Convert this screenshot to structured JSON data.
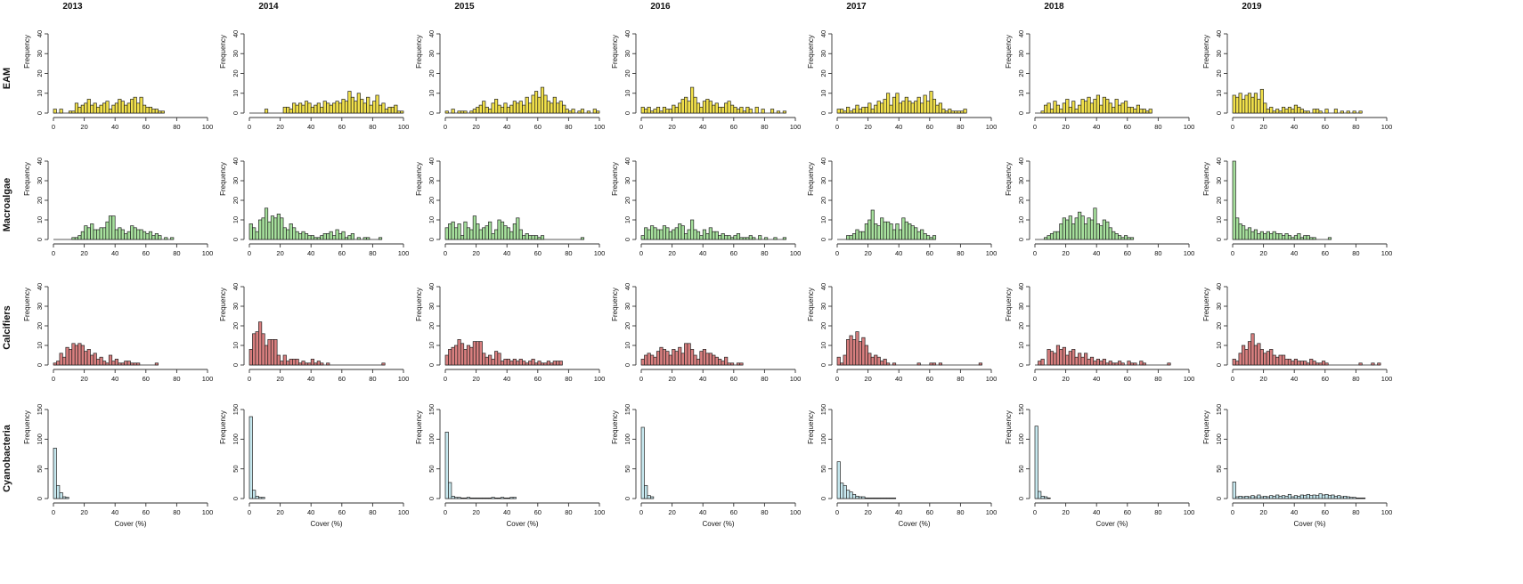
{
  "chart_data": {
    "type": "histogram-grid",
    "years": [
      "2013",
      "2014",
      "2015",
      "2016",
      "2017",
      "2018",
      "2019"
    ],
    "x_label": "Cover (%)",
    "y_label": "Frequency",
    "xlim": [
      0,
      100
    ],
    "x_ticks": [
      0,
      20,
      40,
      60,
      80,
      100
    ],
    "bin_width": 2,
    "rows": [
      {
        "name": "EAM",
        "color": "#f2e14a",
        "ylim": [
          0,
          40
        ],
        "y_ticks": [
          0,
          10,
          20,
          30,
          40
        ],
        "panels": [
          [
            2,
            0,
            2,
            0,
            0,
            1,
            1,
            5,
            3,
            4,
            5,
            7,
            4,
            5,
            3,
            4,
            5,
            6,
            2,
            4,
            5,
            7,
            6,
            4,
            5,
            7,
            8,
            5,
            8,
            4,
            3,
            3,
            2,
            2,
            1,
            1,
            0,
            0
          ],
          [
            0,
            0,
            0,
            0,
            0,
            2,
            0,
            0,
            0,
            0,
            0,
            3,
            3,
            2,
            5,
            4,
            5,
            4,
            6,
            5,
            3,
            4,
            5,
            3,
            6,
            5,
            4,
            5,
            6,
            5,
            7,
            6,
            11,
            8,
            6,
            10,
            7,
            5,
            8,
            4,
            6,
            9,
            4,
            5,
            2,
            3,
            3,
            4,
            1,
            1
          ],
          [
            1,
            0,
            2,
            0,
            1,
            1,
            1,
            0,
            1,
            2,
            3,
            4,
            6,
            3,
            2,
            5,
            7,
            4,
            3,
            5,
            3,
            4,
            6,
            5,
            6,
            4,
            8,
            5,
            9,
            11,
            8,
            13,
            9,
            6,
            5,
            8,
            5,
            6,
            4,
            2,
            1,
            2,
            0,
            1,
            2,
            0,
            1,
            0,
            2,
            1
          ],
          [
            3,
            2,
            3,
            1,
            2,
            3,
            1,
            3,
            2,
            2,
            4,
            3,
            5,
            7,
            8,
            6,
            13,
            8,
            5,
            3,
            6,
            7,
            6,
            4,
            5,
            3,
            3,
            5,
            6,
            4,
            3,
            2,
            3,
            1,
            3,
            2,
            0,
            3,
            0,
            2,
            0,
            0,
            2,
            0,
            1,
            0,
            1
          ],
          [
            2,
            2,
            1,
            3,
            1,
            2,
            4,
            2,
            3,
            3,
            5,
            2,
            4,
            6,
            5,
            7,
            10,
            4,
            8,
            10,
            5,
            6,
            8,
            6,
            5,
            6,
            8,
            5,
            9,
            6,
            11,
            7,
            4,
            5,
            2,
            1,
            2,
            1,
            1,
            1,
            1,
            2
          ],
          [
            0,
            0,
            1,
            4,
            5,
            2,
            6,
            4,
            2,
            5,
            7,
            3,
            6,
            2,
            4,
            7,
            6,
            8,
            5,
            7,
            9,
            4,
            8,
            7,
            5,
            3,
            7,
            4,
            5,
            6,
            3,
            3,
            2,
            4,
            2,
            2,
            1,
            2
          ],
          [
            9,
            8,
            10,
            7,
            9,
            10,
            8,
            10,
            7,
            12,
            5,
            2,
            3,
            1,
            2,
            1,
            3,
            2,
            3,
            2,
            4,
            3,
            2,
            1,
            1,
            0,
            2,
            2,
            1,
            0,
            2,
            0,
            0,
            2,
            0,
            1,
            0,
            1,
            0,
            1,
            0,
            1
          ]
        ]
      },
      {
        "name": "Macroalgae",
        "color": "#a6e09c",
        "ylim": [
          0,
          40
        ],
        "y_ticks": [
          0,
          10,
          20,
          30,
          40
        ],
        "panels": [
          [
            0,
            0,
            0,
            0,
            0,
            0,
            1,
            1,
            2,
            4,
            7,
            6,
            8,
            5,
            5,
            6,
            6,
            9,
            12,
            12,
            5,
            6,
            5,
            3,
            4,
            7,
            6,
            5,
            5,
            4,
            3,
            4,
            2,
            3,
            2,
            0,
            1,
            0,
            1
          ],
          [
            8,
            6,
            4,
            10,
            11,
            16,
            9,
            12,
            11,
            13,
            11,
            6,
            5,
            8,
            6,
            4,
            3,
            4,
            3,
            2,
            2,
            1,
            1,
            2,
            3,
            3,
            4,
            2,
            5,
            3,
            4,
            1,
            2,
            3,
            0,
            1,
            0,
            1,
            1,
            0,
            0,
            0,
            1
          ],
          [
            6,
            8,
            9,
            6,
            8,
            2,
            9,
            6,
            5,
            12,
            8,
            5,
            6,
            7,
            9,
            3,
            5,
            10,
            9,
            7,
            6,
            4,
            8,
            11,
            5,
            2,
            3,
            2,
            2,
            2,
            1,
            2,
            0,
            0,
            0,
            0,
            0,
            0,
            0,
            0,
            0,
            0,
            0,
            0,
            1
          ],
          [
            2,
            6,
            5,
            7,
            6,
            5,
            5,
            7,
            6,
            4,
            5,
            6,
            8,
            7,
            3,
            5,
            10,
            5,
            4,
            2,
            5,
            3,
            6,
            4,
            4,
            2,
            3,
            2,
            2,
            1,
            2,
            3,
            1,
            1,
            1,
            2,
            1,
            0,
            2,
            0,
            1,
            0,
            0,
            1,
            0,
            0,
            1
          ],
          [
            0,
            0,
            0,
            2,
            2,
            3,
            5,
            4,
            4,
            8,
            10,
            15,
            8,
            7,
            11,
            9,
            9,
            8,
            5,
            8,
            5,
            11,
            9,
            8,
            7,
            6,
            4,
            5,
            3,
            2,
            1,
            2,
            0,
            0
          ],
          [
            0,
            0,
            0,
            1,
            2,
            3,
            4,
            4,
            8,
            11,
            10,
            12,
            8,
            11,
            14,
            12,
            8,
            11,
            10,
            16,
            8,
            7,
            10,
            9,
            6,
            4,
            3,
            2,
            1,
            2,
            1,
            1,
            0
          ],
          [
            40,
            11,
            8,
            7,
            5,
            6,
            4,
            5,
            3,
            4,
            3,
            4,
            3,
            4,
            3,
            3,
            2,
            3,
            2,
            1,
            2,
            3,
            1,
            2,
            2,
            1,
            1,
            0,
            0,
            0,
            0,
            1
          ]
        ]
      },
      {
        "name": "Calcifiers",
        "color": "#d97f7f",
        "ylim": [
          0,
          40
        ],
        "y_ticks": [
          0,
          10,
          20,
          30,
          40
        ],
        "panels": [
          [
            1,
            2,
            6,
            4,
            9,
            8,
            11,
            10,
            11,
            10,
            7,
            8,
            5,
            6,
            3,
            4,
            2,
            1,
            5,
            2,
            3,
            1,
            1,
            2,
            2,
            1,
            1,
            1,
            0,
            0,
            0,
            0,
            0,
            1
          ],
          [
            8,
            16,
            17,
            22,
            16,
            10,
            13,
            13,
            13,
            5,
            2,
            5,
            2,
            3,
            3,
            3,
            1,
            2,
            1,
            1,
            3,
            1,
            2,
            1,
            0,
            1,
            0,
            0,
            0,
            0,
            0,
            0,
            0,
            0,
            0,
            0,
            0,
            0,
            0,
            0,
            0,
            0,
            0,
            1
          ],
          [
            5,
            8,
            9,
            10,
            13,
            11,
            8,
            10,
            9,
            12,
            12,
            12,
            6,
            4,
            5,
            3,
            7,
            6,
            2,
            3,
            3,
            2,
            3,
            2,
            3,
            2,
            1,
            2,
            3,
            1,
            2,
            1,
            1,
            2,
            1,
            2,
            2,
            2
          ],
          [
            3,
            5,
            6,
            5,
            4,
            7,
            9,
            8,
            7,
            5,
            8,
            7,
            9,
            6,
            11,
            11,
            8,
            5,
            3,
            7,
            8,
            6,
            6,
            5,
            4,
            3,
            2,
            4,
            1,
            1,
            0,
            1,
            1
          ],
          [
            4,
            1,
            5,
            13,
            15,
            13,
            17,
            12,
            14,
            10,
            6,
            4,
            5,
            4,
            2,
            3,
            1,
            0,
            1,
            0,
            0,
            0,
            0,
            0,
            0,
            0,
            1,
            0,
            0,
            0,
            1,
            1,
            0,
            1,
            0,
            0,
            0,
            0,
            0,
            0,
            0,
            0,
            0,
            0,
            0,
            0,
            1
          ],
          [
            0,
            2,
            3,
            0,
            8,
            7,
            6,
            10,
            8,
            9,
            5,
            7,
            8,
            4,
            6,
            4,
            6,
            3,
            4,
            2,
            3,
            2,
            3,
            1,
            2,
            1,
            1,
            2,
            1,
            0,
            2,
            1,
            1,
            0,
            2,
            1,
            0,
            0,
            0,
            0,
            0,
            0,
            0,
            1
          ],
          [
            3,
            2,
            6,
            10,
            8,
            12,
            16,
            10,
            11,
            8,
            6,
            7,
            8,
            5,
            4,
            5,
            5,
            3,
            3,
            2,
            3,
            2,
            2,
            2,
            1,
            3,
            2,
            1,
            1,
            2,
            1,
            0,
            0,
            0,
            0,
            0,
            0,
            0,
            0,
            0,
            0,
            1,
            0,
            0,
            0,
            1,
            0,
            1
          ]
        ]
      },
      {
        "name": "Cyanobacteria",
        "color": "#c6e8ef",
        "ylim": [
          0,
          150
        ],
        "y_ticks": [
          0,
          50,
          100,
          150
        ],
        "panels": [
          [
            85,
            22,
            10,
            3,
            2
          ],
          [
            138,
            14,
            4,
            2,
            2
          ],
          [
            112,
            27,
            4,
            2,
            2,
            1,
            1,
            2,
            1,
            1,
            1,
            1,
            1,
            1,
            1,
            2,
            1,
            1,
            2,
            1,
            1,
            2,
            2
          ],
          [
            120,
            22,
            5,
            3
          ],
          [
            62,
            26,
            22,
            14,
            11,
            7,
            4,
            3,
            3,
            1,
            1,
            1,
            1,
            1,
            1,
            1,
            1,
            1,
            1
          ],
          [
            122,
            12,
            4,
            3,
            1
          ],
          [
            28,
            3,
            4,
            3,
            4,
            3,
            5,
            3,
            6,
            3,
            4,
            3,
            5,
            4,
            6,
            4,
            5,
            4,
            7,
            3,
            5,
            4,
            6,
            5,
            7,
            5,
            6,
            5,
            8,
            6,
            7,
            5,
            6,
            4,
            5,
            3,
            4,
            3,
            2,
            2,
            1,
            1,
            1
          ]
        ]
      }
    ]
  }
}
